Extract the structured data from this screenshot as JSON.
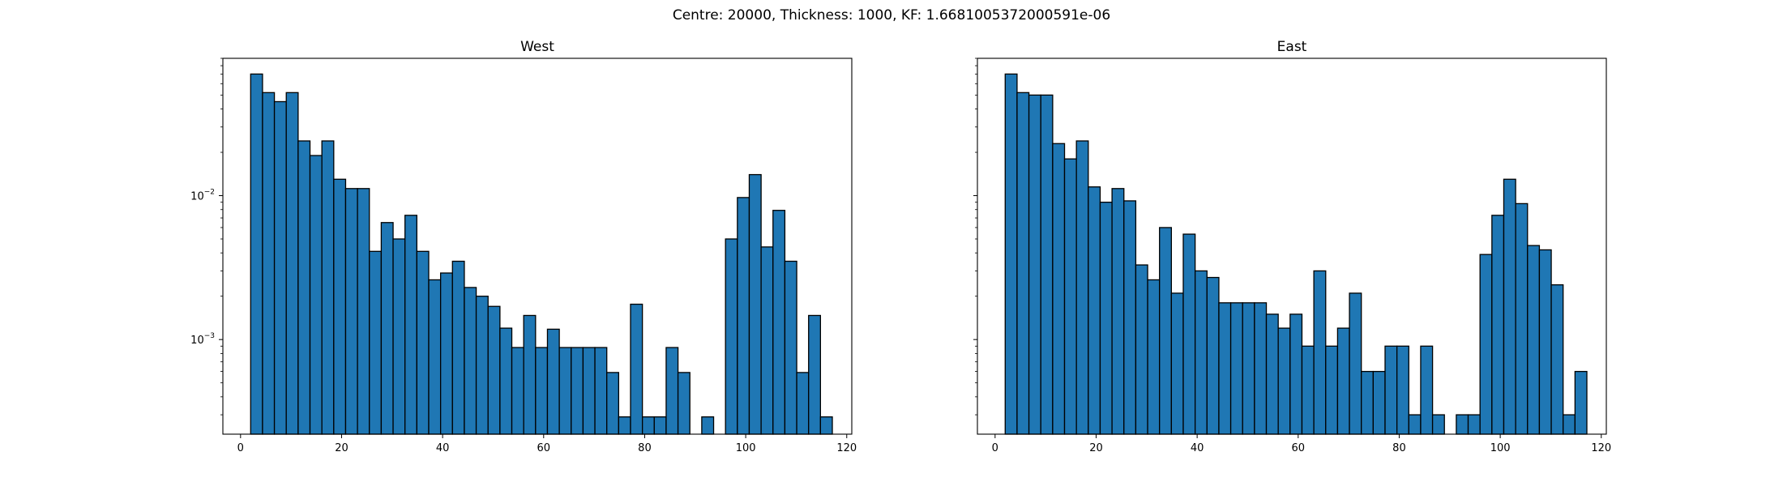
{
  "suptitle": "Centre: 20000, Thickness: 1000, KF: 1.6681005372000591e-06",
  "chart_data": [
    {
      "type": "bar",
      "title": "West",
      "xlabel": "",
      "ylabel": "",
      "xlim": [
        -3.5,
        121
      ],
      "ylim": [
        0.00022,
        0.09
      ],
      "yscale": "log",
      "xticks": [
        0,
        20,
        40,
        60,
        80,
        100,
        120
      ],
      "yticks": [
        {
          "value": 0.001,
          "label": "10",
          "exp": "−3"
        },
        {
          "value": 0.01,
          "label": "10",
          "exp": "−2"
        }
      ],
      "bin_start": 2,
      "bin_width": 2.35,
      "values": [
        0.07,
        0.052,
        0.045,
        0.052,
        0.024,
        0.019,
        0.024,
        0.013,
        0.0112,
        0.0112,
        0.0041,
        0.0065,
        0.005,
        0.0073,
        0.0041,
        0.0026,
        0.0029,
        0.0035,
        0.0023,
        0.002,
        0.0017,
        0.0012,
        0.00088,
        0.00147,
        0.00088,
        0.00118,
        0.00088,
        0.00088,
        0.00088,
        0.00088,
        0.00059,
        0.00029,
        0.00176,
        0.00029,
        0.00029,
        0.00088,
        0.00059,
        0,
        0.00029,
        0,
        0.005,
        0.0097,
        0.014,
        0.0044,
        0.0079,
        0.0035,
        0.00059,
        0.00147,
        0.00029
      ],
      "color": "#1f77b4",
      "edgecolor": "#000000",
      "grid": false
    },
    {
      "type": "bar",
      "title": "East",
      "xlabel": "",
      "ylabel": "",
      "xlim": [
        -3.5,
        121
      ],
      "ylim": [
        0.00022,
        0.09
      ],
      "yscale": "log",
      "xticks": [
        0,
        20,
        40,
        60,
        80,
        100,
        120
      ],
      "yticks": [],
      "bin_start": 2,
      "bin_width": 2.35,
      "values": [
        0.07,
        0.052,
        0.05,
        0.05,
        0.023,
        0.018,
        0.024,
        0.0115,
        0.009,
        0.0112,
        0.0092,
        0.0033,
        0.0026,
        0.006,
        0.0021,
        0.0054,
        0.003,
        0.0027,
        0.0018,
        0.0018,
        0.0018,
        0.0018,
        0.0015,
        0.0012,
        0.0015,
        0.0009,
        0.003,
        0.0009,
        0.0012,
        0.0021,
        0.0006,
        0.0006,
        0.0009,
        0.0009,
        0.0003,
        0.0009,
        0.0003,
        0,
        0.0003,
        0.0003,
        0.0039,
        0.0073,
        0.013,
        0.0088,
        0.0045,
        0.0042,
        0.0024,
        0.0003,
        0.0006
      ],
      "color": "#1f77b4",
      "edgecolor": "#000000",
      "grid": false
    }
  ]
}
